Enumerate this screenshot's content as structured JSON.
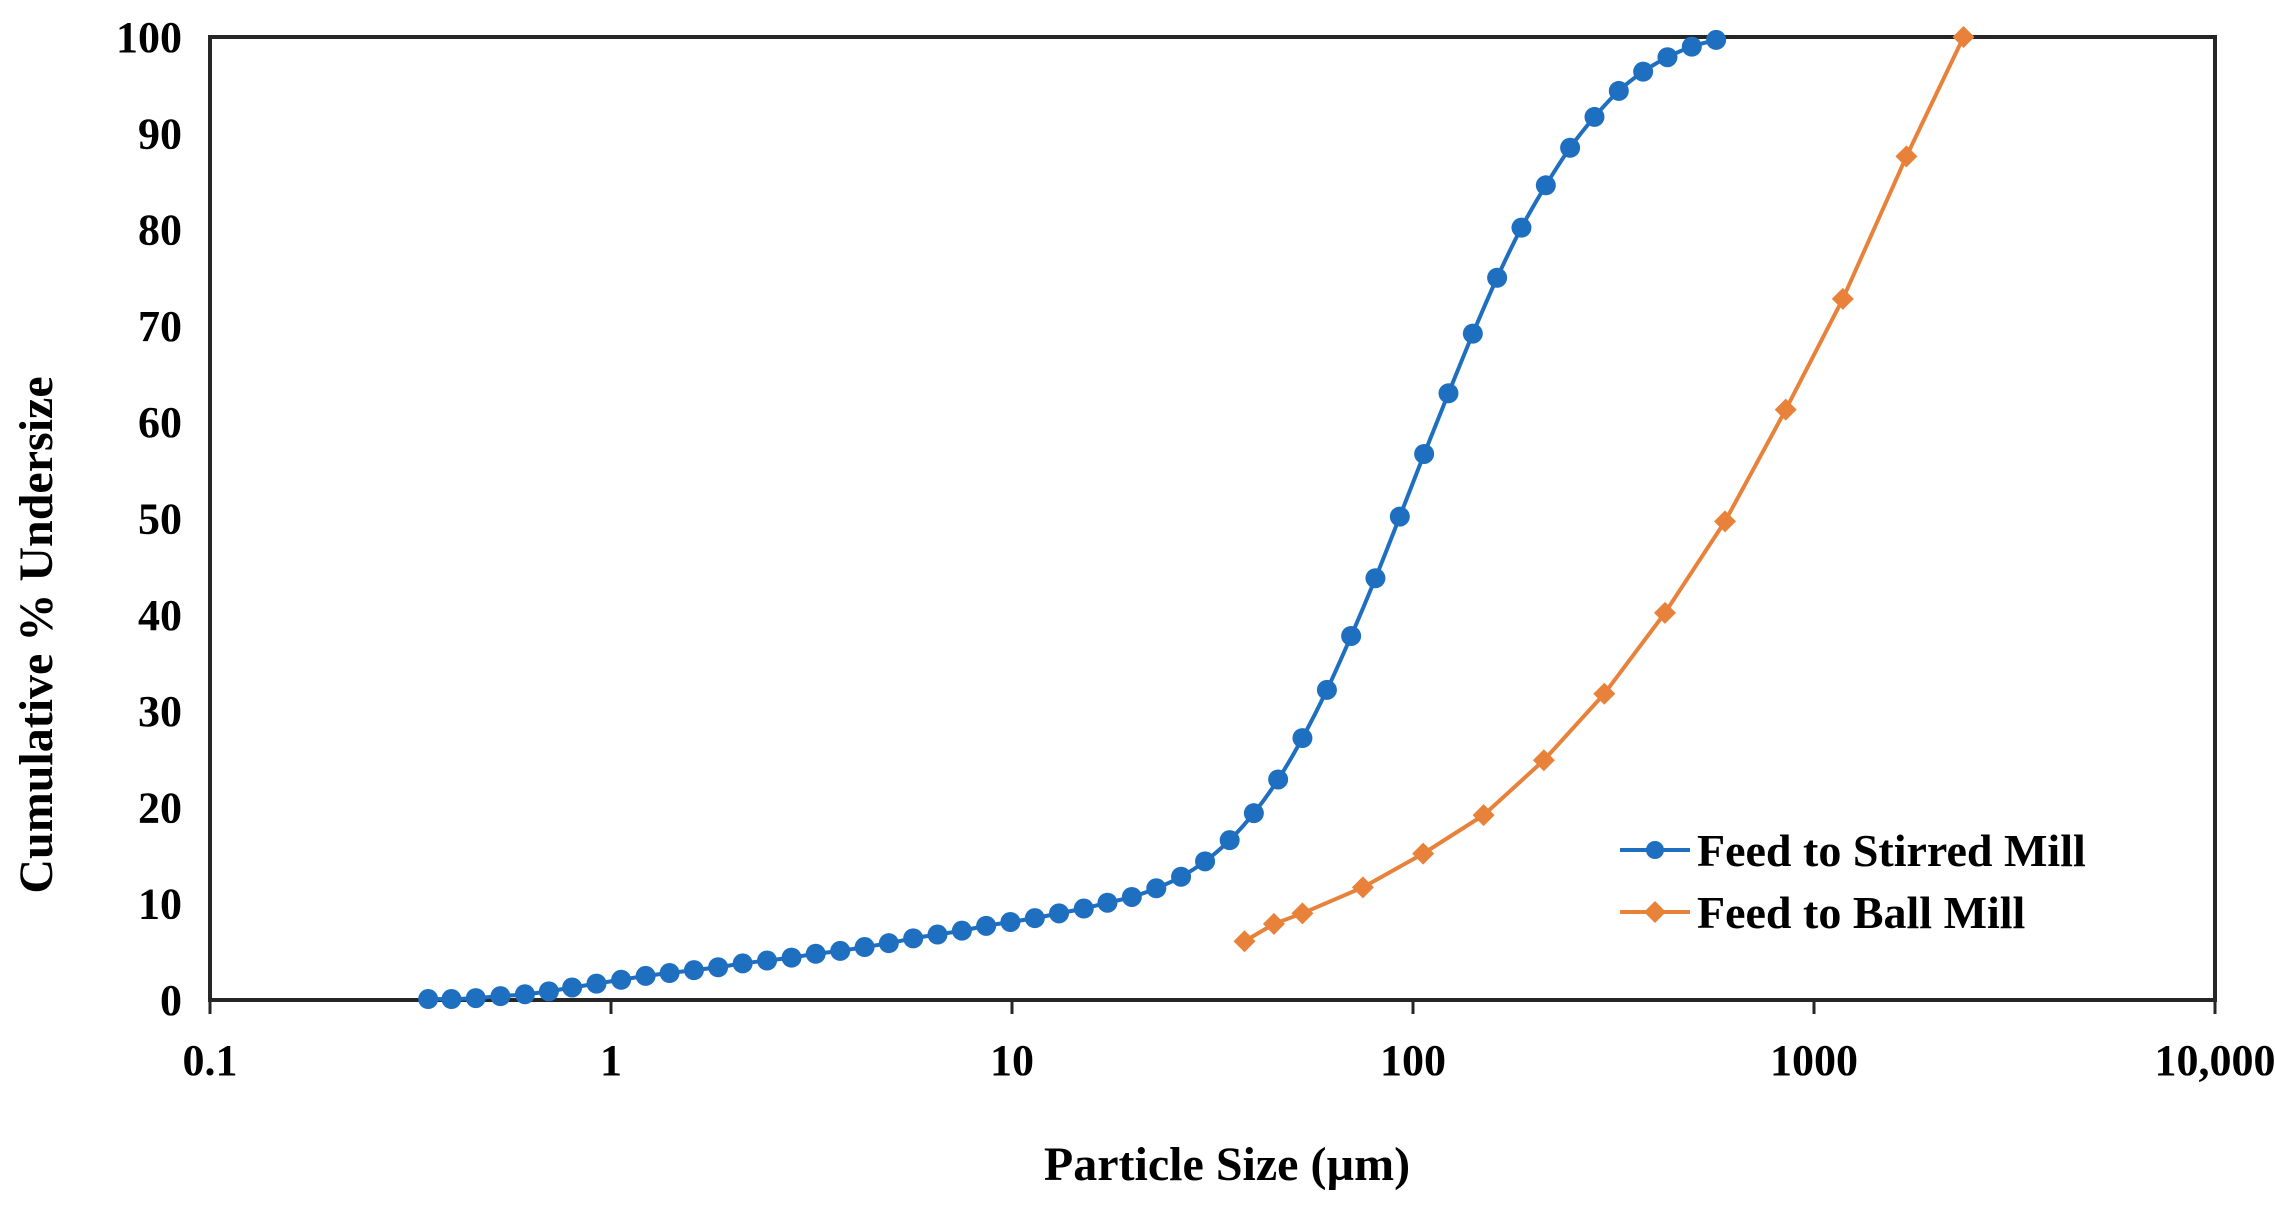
{
  "chart_data": {
    "type": "scatter",
    "xlabel": "Particle Size (µm)",
    "ylabel": "Cumulative % Undersize",
    "x_scale": "log",
    "xlim": [
      0.1,
      10000
    ],
    "ylim": [
      0,
      100
    ],
    "x_ticks": [
      0.1,
      1,
      10,
      100,
      1000,
      10000
    ],
    "x_tick_labels": [
      "0.1",
      "1",
      "10",
      "100",
      "1000",
      "10,000"
    ],
    "y_ticks": [
      0,
      10,
      20,
      30,
      40,
      50,
      60,
      70,
      80,
      90,
      100
    ],
    "y_tick_labels": [
      "0",
      "10",
      "20",
      "30",
      "40",
      "50",
      "60",
      "70",
      "80",
      "90",
      "100"
    ],
    "grid": false,
    "legend_position": "bottom-right",
    "series": [
      {
        "name": "Feed to Stirred Mill",
        "color": "#1f6fc1",
        "marker": "circle",
        "points": [
          [
            0.35,
            0.1
          ],
          [
            0.4,
            0.1
          ],
          [
            0.46,
            0.2
          ],
          [
            0.53,
            0.4
          ],
          [
            0.61,
            0.6
          ],
          [
            0.7,
            0.9
          ],
          [
            0.8,
            1.3
          ],
          [
            0.92,
            1.7
          ],
          [
            1.06,
            2.1
          ],
          [
            1.22,
            2.5
          ],
          [
            1.4,
            2.8
          ],
          [
            1.61,
            3.1
          ],
          [
            1.85,
            3.4
          ],
          [
            2.13,
            3.8
          ],
          [
            2.45,
            4.1
          ],
          [
            2.82,
            4.4
          ],
          [
            3.24,
            4.8
          ],
          [
            3.73,
            5.1
          ],
          [
            4.29,
            5.5
          ],
          [
            4.93,
            5.9
          ],
          [
            5.67,
            6.4
          ],
          [
            6.52,
            6.8
          ],
          [
            7.5,
            7.2
          ],
          [
            8.62,
            7.7
          ],
          [
            9.91,
            8.1
          ],
          [
            11.4,
            8.5
          ],
          [
            13.1,
            9.0
          ],
          [
            15.1,
            9.5
          ],
          [
            17.3,
            10.1
          ],
          [
            19.9,
            10.7
          ],
          [
            22.9,
            11.6
          ],
          [
            26.4,
            12.8
          ],
          [
            30.3,
            14.4
          ],
          [
            34.9,
            16.6
          ],
          [
            40.1,
            19.4
          ],
          [
            46.1,
            22.9
          ],
          [
            53.0,
            27.2
          ],
          [
            61.0,
            32.2
          ],
          [
            70.1,
            37.8
          ],
          [
            80.6,
            43.8
          ],
          [
            92.7,
            50.2
          ],
          [
            106.6,
            56.7
          ],
          [
            122.6,
            63.0
          ],
          [
            141.0,
            69.2
          ],
          [
            162.1,
            75.0
          ],
          [
            186.4,
            80.2
          ],
          [
            214.4,
            84.6
          ],
          [
            246.5,
            88.5
          ],
          [
            283.5,
            91.7
          ],
          [
            326.0,
            94.4
          ],
          [
            374.9,
            96.4
          ],
          [
            431.1,
            97.9
          ],
          [
            495.8,
            99.0
          ],
          [
            570.1,
            99.7
          ]
        ]
      },
      {
        "name": "Feed to Ball Mill",
        "color": "#e8823a",
        "marker": "diamond",
        "points": [
          [
            38,
            6.1
          ],
          [
            45,
            7.9
          ],
          [
            53,
            9.0
          ],
          [
            75,
            11.7
          ],
          [
            106,
            15.2
          ],
          [
            150,
            19.2
          ],
          [
            212,
            24.9
          ],
          [
            300,
            31.8
          ],
          [
            425,
            40.2
          ],
          [
            600,
            49.7
          ],
          [
            850,
            61.3
          ],
          [
            1180,
            72.8
          ],
          [
            1700,
            87.6
          ],
          [
            2360,
            100
          ]
        ]
      }
    ]
  }
}
